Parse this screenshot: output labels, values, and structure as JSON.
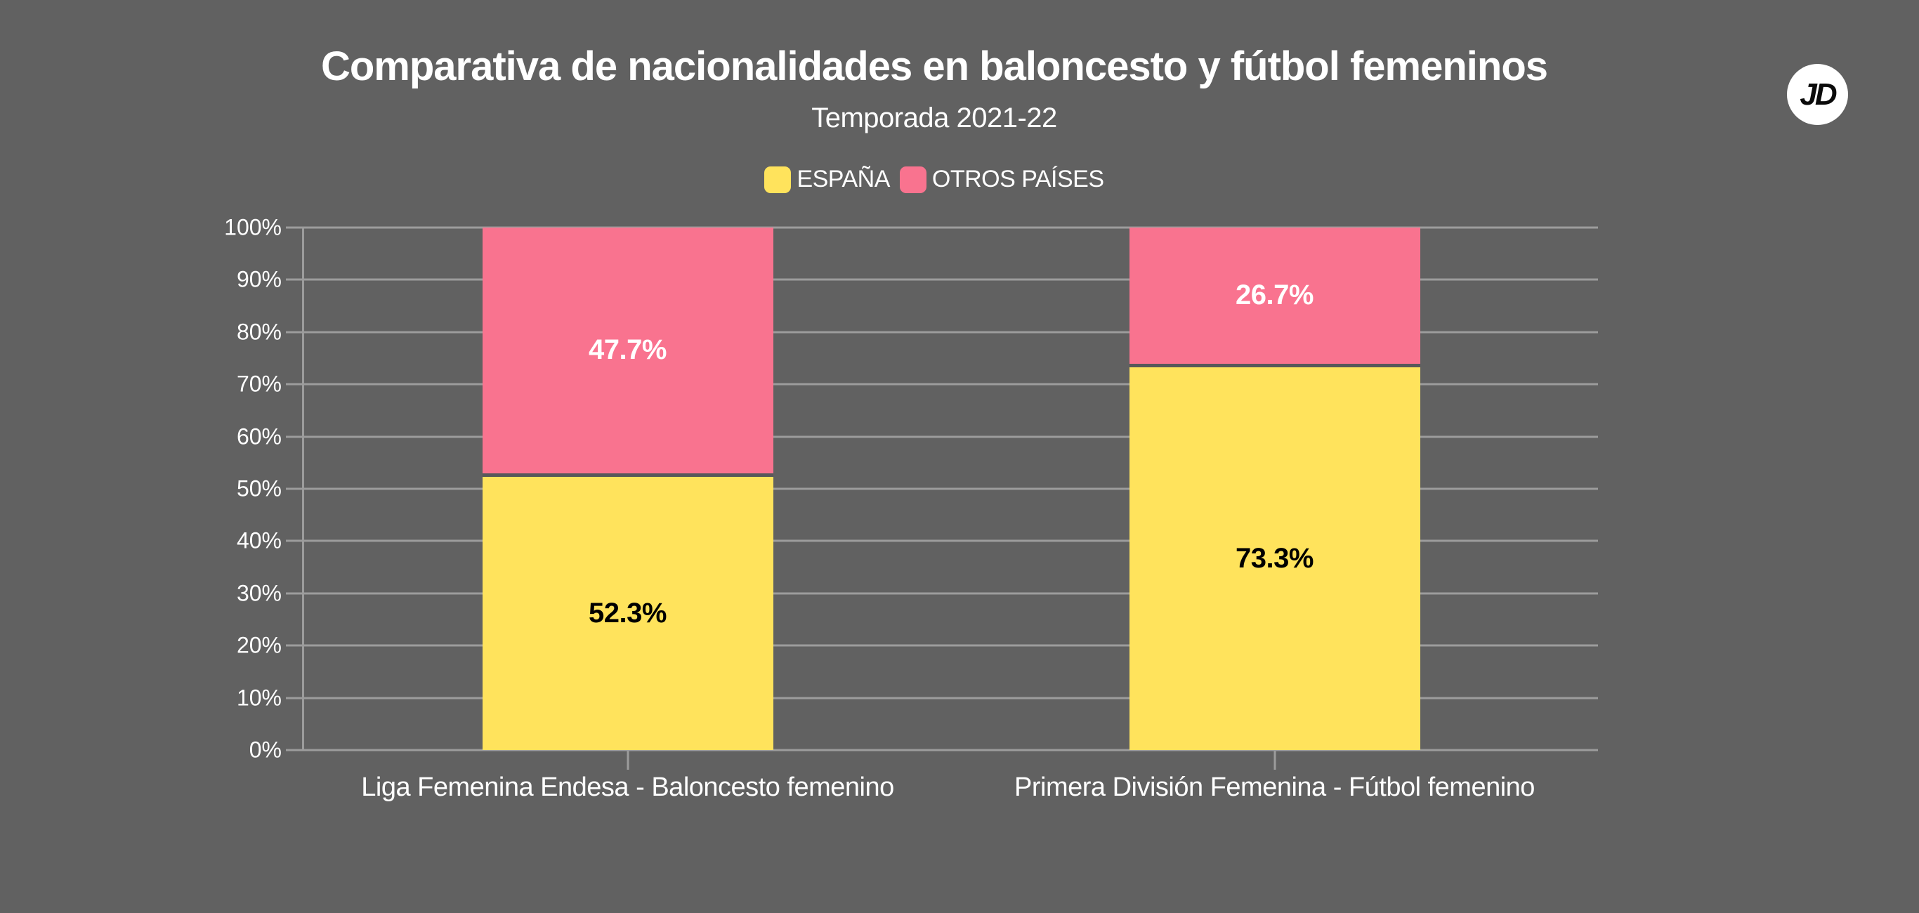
{
  "header": {
    "title": "Comparativa de nacionalidades en baloncesto y fútbol femeninos",
    "subtitle": "Temporada 2021-22",
    "logo_text": "JD"
  },
  "colors": {
    "background": "#616161",
    "gridline": "#9c9c9c",
    "text": "#ffffff",
    "segment_divider": "#58585a",
    "espana": "#FFE35C",
    "otros_paises": "#F9738F",
    "label_on_espana": "#000000",
    "label_on_otros": "#ffffff",
    "logo_bg": "#ffffff",
    "logo_text": "#0b0b0b"
  },
  "chart_data": {
    "type": "bar",
    "stacked": true,
    "title": "Comparativa de nacionalidades en baloncesto y fútbol femeninos",
    "subtitle": "Temporada 2021-22",
    "categories": [
      "Liga Femenina Endesa - Baloncesto femenino",
      "Primera División Femenina - Fútbol femenino"
    ],
    "series": [
      {
        "name": "ESPAÑA",
        "color": "#FFE35C",
        "label_color": "#000000",
        "values": [
          52.3,
          73.3
        ]
      },
      {
        "name": "OTROS PAÍSES",
        "color": "#F9738F",
        "label_color": "#ffffff",
        "values": [
          47.7,
          26.7
        ]
      }
    ],
    "value_suffix": "%",
    "xlabel": "",
    "ylabel": "",
    "ylim": [
      0,
      100
    ],
    "ytick_step": 10,
    "ytick_format": "percent",
    "grid": true,
    "legend_position": "top"
  }
}
